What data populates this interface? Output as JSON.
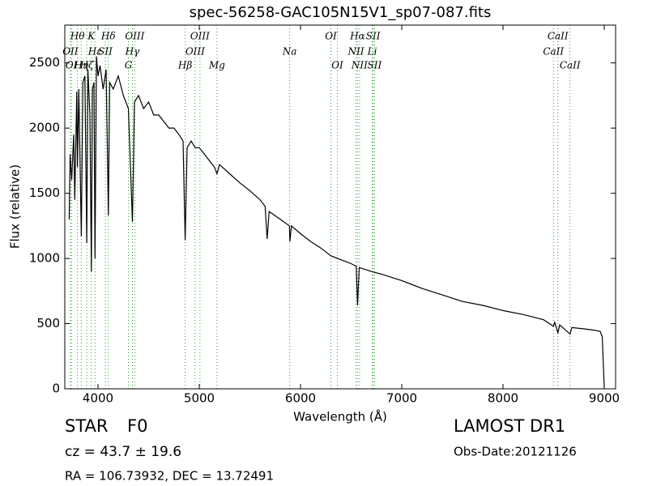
{
  "chart_data": {
    "type": "line",
    "title": "spec-56258-GAC105N15V1_sp07-087.fits",
    "x_label": "Wavelength (Å)",
    "y_label": "Flux (relative)",
    "xlim": [
      3672,
      9112
    ],
    "ylim": [
      0,
      2790
    ],
    "xticks": [
      4000,
      5000,
      6000,
      7000,
      8000,
      9000
    ],
    "yticks": [
      0,
      500,
      1000,
      1500,
      2000,
      2500
    ],
    "line_color": "#000000",
    "marker_color": "#2ca02c",
    "x": [
      3715,
      3725,
      3740,
      3760,
      3770,
      3790,
      3797,
      3810,
      3835,
      3850,
      3870,
      3889,
      3900,
      3920,
      3934,
      3945,
      3960,
      3970,
      3985,
      4000,
      4020,
      4050,
      4080,
      4102,
      4115,
      4150,
      4200,
      4250,
      4300,
      4340,
      4360,
      4400,
      4450,
      4500,
      4550,
      4600,
      4650,
      4700,
      4750,
      4800,
      4840,
      4861,
      4880,
      4920,
      4960,
      5000,
      5050,
      5100,
      5150,
      5175,
      5200,
      5300,
      5400,
      5500,
      5600,
      5650,
      5670,
      5690,
      5800,
      5890,
      5895,
      5910,
      6000,
      6100,
      6200,
      6300,
      6400,
      6500,
      6550,
      6563,
      6580,
      6700,
      6800,
      7000,
      7200,
      7400,
      7600,
      7800,
      8000,
      8200,
      8400,
      8498,
      8510,
      8542,
      8560,
      8662,
      8680,
      8800,
      8900,
      8960,
      8980,
      9000
    ],
    "values": [
      1300,
      1800,
      1600,
      1950,
      1450,
      2280,
      1700,
      2300,
      1170,
      2350,
      2400,
      1118,
      2450,
      2100,
      900,
      2300,
      2350,
      1000,
      2550,
      2400,
      2480,
      2300,
      2450,
      1330,
      2350,
      2300,
      2400,
      2250,
      2150,
      1280,
      2200,
      2250,
      2150,
      2200,
      2100,
      2100,
      2050,
      2000,
      2000,
      1950,
      1900,
      1140,
      1850,
      1900,
      1850,
      1850,
      1800,
      1750,
      1700,
      1650,
      1720,
      1650,
      1580,
      1520,
      1450,
      1400,
      1150,
      1360,
      1300,
      1250,
      1130,
      1250,
      1190,
      1130,
      1080,
      1020,
      990,
      960,
      940,
      640,
      930,
      900,
      880,
      830,
      770,
      720,
      670,
      640,
      600,
      570,
      530,
      480,
      510,
      430,
      490,
      420,
      470,
      460,
      450,
      440,
      400,
      10
    ],
    "line_rows": [
      [
        {
          "label": "Hθ",
          "wavelength": 3797
        },
        {
          "label": "K",
          "wavelength": 3934
        },
        {
          "label": "Hδ",
          "wavelength": 4102
        },
        {
          "label": "OIII",
          "wavelength": 4363
        },
        {
          "label": "OIII",
          "wavelength": 5007
        },
        {
          "label": "OI",
          "wavelength": 6300
        },
        {
          "label": "Hα",
          "wavelength": 6563
        },
        {
          "label": "SII",
          "wavelength": 6717
        },
        {
          "label": "CaII",
          "wavelength": 8542
        }
      ],
      [
        {
          "label": "OII",
          "wavelength": 3727
        },
        {
          "label": "Hε",
          "wavelength": 3970
        },
        {
          "label": "SII",
          "wavelength": 4072
        },
        {
          "label": "Hγ",
          "wavelength": 4340
        },
        {
          "label": "OIII",
          "wavelength": 4959
        },
        {
          "label": "Na",
          "wavelength": 5893
        },
        {
          "label": "NII",
          "wavelength": 6548
        },
        {
          "label": "Li",
          "wavelength": 6708
        },
        {
          "label": "CaII",
          "wavelength": 8498
        }
      ],
      [
        {
          "label": "OI",
          "wavelength": 3737
        },
        {
          "label": "Hη",
          "wavelength": 3835
        },
        {
          "label": "Hζ",
          "wavelength": 3889
        },
        {
          "label": "G",
          "wavelength": 4300
        },
        {
          "label": "Hβ",
          "wavelength": 4861
        },
        {
          "label": "Mg",
          "wavelength": 5175
        },
        {
          "label": "OI",
          "wavelength": 6364
        },
        {
          "label": "NII",
          "wavelength": 6583
        },
        {
          "label": "SII",
          "wavelength": 6731
        },
        {
          "label": "CaII",
          "wavelength": 8662
        }
      ]
    ],
    "info": {
      "object_class": "STAR",
      "subclass": "F0",
      "cz": "cz = 43.7 ± 19.6",
      "survey": "LAMOST DR1",
      "obs_date": "Obs-Date:20121126",
      "coords": "RA = 106.73932, DEC = 13.72491"
    }
  }
}
